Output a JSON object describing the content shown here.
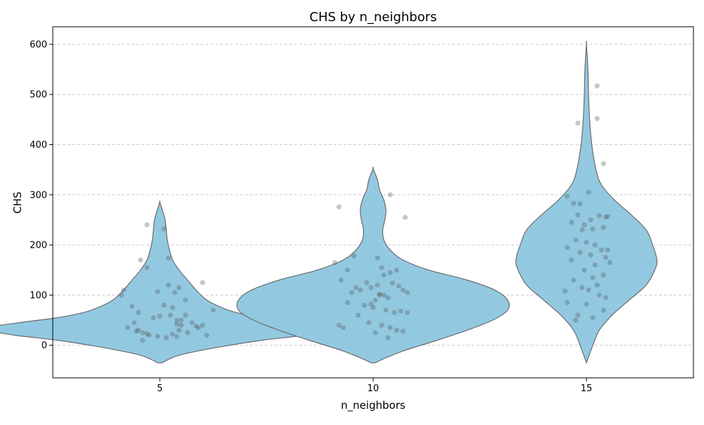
{
  "chart_data": {
    "type": "violin",
    "title": "CHS by n_neighbors",
    "xlabel": "n_neighbors",
    "ylabel": "CHS",
    "categories": [
      "5",
      "10",
      "15"
    ],
    "ylim": [
      -65,
      635
    ],
    "yticks": [
      0,
      100,
      200,
      300,
      400,
      500,
      600
    ],
    "grid": "horizontal-dashed",
    "colors": {
      "violin_fill": "#92c9e1",
      "violin_edge": "#6b6b6b",
      "points": "#505050",
      "grid": "#cccccc"
    },
    "violins": [
      {
        "category": "5",
        "range": [
          -35,
          285
        ],
        "profile": [
          [
            -35,
            0.01
          ],
          [
            -20,
            0.09
          ],
          [
            -5,
            0.26
          ],
          [
            10,
            0.48
          ],
          [
            20,
            0.68
          ],
          [
            30,
            0.8
          ],
          [
            36,
            0.8
          ],
          [
            45,
            0.66
          ],
          [
            55,
            0.48
          ],
          [
            65,
            0.36
          ],
          [
            75,
            0.29
          ],
          [
            90,
            0.22
          ],
          [
            110,
            0.17
          ],
          [
            130,
            0.13
          ],
          [
            150,
            0.09
          ],
          [
            170,
            0.06
          ],
          [
            190,
            0.045
          ],
          [
            210,
            0.035
          ],
          [
            230,
            0.03
          ],
          [
            250,
            0.025
          ],
          [
            265,
            0.015
          ],
          [
            285,
            0.0
          ]
        ],
        "points": [
          [
            30,
            -0.1
          ],
          [
            20,
            -0.05
          ],
          [
            15,
            0.03
          ],
          [
            40,
            0.1
          ],
          [
            25,
            -0.08
          ],
          [
            45,
            0.15
          ],
          [
            35,
            0.18
          ],
          [
            20,
            0.22
          ],
          [
            50,
            0.08
          ],
          [
            55,
            -0.03
          ],
          [
            60,
            0.12
          ],
          [
            75,
            0.06
          ],
          [
            78,
            -0.13
          ],
          [
            80,
            0.02
          ],
          [
            105,
            0.07
          ],
          [
            107,
            -0.01
          ],
          [
            110,
            -0.17
          ],
          [
            120,
            0.04
          ],
          [
            115,
            0.09
          ],
          [
            100,
            -0.18
          ],
          [
            125,
            0.2
          ],
          [
            90,
            0.12
          ],
          [
            70,
            0.25
          ],
          [
            65,
            -0.1
          ],
          [
            60,
            0.05
          ],
          [
            45,
            -0.12
          ],
          [
            40,
            0.2
          ],
          [
            35,
            -0.15
          ],
          [
            30,
            0.09
          ],
          [
            25,
            0.13
          ],
          [
            22,
            0.06
          ],
          [
            18,
            -0.01
          ],
          [
            17,
            0.08
          ],
          [
            23,
            -0.06
          ],
          [
            28,
            -0.11
          ],
          [
            38,
            0.17
          ],
          [
            42,
            0.08
          ],
          [
            10,
            -0.08
          ],
          [
            170,
            -0.09
          ],
          [
            155,
            -0.06
          ],
          [
            240,
            -0.06
          ],
          [
            232,
            0.02
          ],
          [
            174,
            0.04
          ],
          [
            50,
            0.1
          ],
          [
            58,
            0.0
          ]
        ]
      },
      {
        "category": "10",
        "range": [
          -35,
          352
        ],
        "profile": [
          [
            -35,
            0.01
          ],
          [
            -25,
            0.06
          ],
          [
            -10,
            0.15
          ],
          [
            10,
            0.3
          ],
          [
            30,
            0.44
          ],
          [
            50,
            0.56
          ],
          [
            70,
            0.63
          ],
          [
            90,
            0.63
          ],
          [
            110,
            0.57
          ],
          [
            130,
            0.44
          ],
          [
            150,
            0.26
          ],
          [
            170,
            0.14
          ],
          [
            190,
            0.08
          ],
          [
            210,
            0.05
          ],
          [
            230,
            0.045
          ],
          [
            250,
            0.055
          ],
          [
            270,
            0.06
          ],
          [
            290,
            0.05
          ],
          [
            310,
            0.03
          ],
          [
            330,
            0.02
          ],
          [
            352,
            0.0
          ]
        ],
        "points": [
          [
            130,
            -0.15
          ],
          [
            150,
            -0.12
          ],
          [
            165,
            -0.18
          ],
          [
            178,
            -0.09
          ],
          [
            125,
            -0.03
          ],
          [
            120,
            0.02
          ],
          [
            140,
            0.05
          ],
          [
            145,
            0.08
          ],
          [
            155,
            0.04
          ],
          [
            105,
            -0.1
          ],
          [
            110,
            -0.06
          ],
          [
            115,
            -0.01
          ],
          [
            100,
            0.03
          ],
          [
            95,
            0.07
          ],
          [
            85,
            -0.12
          ],
          [
            80,
            -0.04
          ],
          [
            75,
            0.0
          ],
          [
            70,
            0.06
          ],
          [
            65,
            0.1
          ],
          [
            68,
            0.13
          ],
          [
            60,
            -0.07
          ],
          [
            45,
            -0.02
          ],
          [
            40,
            0.04
          ],
          [
            35,
            0.08
          ],
          [
            30,
            0.11
          ],
          [
            28,
            0.14
          ],
          [
            25,
            0.01
          ],
          [
            15,
            0.07
          ],
          [
            110,
            0.14
          ],
          [
            105,
            0.16
          ],
          [
            118,
            0.12
          ],
          [
            65,
            0.16
          ],
          [
            40,
            -0.16
          ],
          [
            35,
            -0.14
          ],
          [
            82,
            -0.01
          ],
          [
            90,
            0.01
          ],
          [
            100,
            0.05
          ],
          [
            124,
            0.09
          ],
          [
            174,
            0.02
          ],
          [
            150,
            0.11
          ],
          [
            300,
            0.08
          ],
          [
            276,
            -0.16
          ],
          [
            255,
            0.15
          ],
          [
            115,
            -0.08
          ],
          [
            102,
            0.03
          ]
        ]
      },
      {
        "category": "15",
        "range": [
          -35,
          600
        ],
        "profile": [
          [
            -35,
            0.0
          ],
          [
            0,
            0.03
          ],
          [
            30,
            0.06
          ],
          [
            60,
            0.12
          ],
          [
            90,
            0.2
          ],
          [
            120,
            0.28
          ],
          [
            150,
            0.32
          ],
          [
            170,
            0.33
          ],
          [
            200,
            0.31
          ],
          [
            230,
            0.28
          ],
          [
            260,
            0.21
          ],
          [
            290,
            0.13
          ],
          [
            320,
            0.07
          ],
          [
            350,
            0.045
          ],
          [
            400,
            0.025
          ],
          [
            450,
            0.015
          ],
          [
            500,
            0.01
          ],
          [
            550,
            0.007
          ],
          [
            600,
            0.0
          ]
        ],
        "points": [
          [
            297,
            -0.09
          ],
          [
            283,
            -0.06
          ],
          [
            282,
            -0.03
          ],
          [
            305,
            0.01
          ],
          [
            258,
            0.06
          ],
          [
            255,
            0.09
          ],
          [
            250,
            0.02
          ],
          [
            260,
            -0.04
          ],
          [
            245,
            -0.07
          ],
          [
            235,
            0.08
          ],
          [
            230,
            -0.02
          ],
          [
            232,
            0.03
          ],
          [
            210,
            -0.05
          ],
          [
            205,
            0.0
          ],
          [
            200,
            0.04
          ],
          [
            195,
            -0.09
          ],
          [
            190,
            0.07
          ],
          [
            185,
            -0.03
          ],
          [
            180,
            0.02
          ],
          [
            175,
            0.09
          ],
          [
            170,
            -0.07
          ],
          [
            160,
            0.04
          ],
          [
            150,
            -0.01
          ],
          [
            140,
            0.08
          ],
          [
            135,
            0.03
          ],
          [
            130,
            -0.06
          ],
          [
            120,
            0.05
          ],
          [
            115,
            -0.02
          ],
          [
            110,
            0.01
          ],
          [
            108,
            -0.1
          ],
          [
            100,
            0.06
          ],
          [
            95,
            0.09
          ],
          [
            85,
            -0.09
          ],
          [
            82,
            0.0
          ],
          [
            70,
            0.08
          ],
          [
            60,
            -0.04
          ],
          [
            55,
            0.03
          ],
          [
            50,
            -0.05
          ],
          [
            443,
            -0.04
          ],
          [
            452,
            0.05
          ],
          [
            517,
            0.05
          ],
          [
            362,
            0.08
          ],
          [
            257,
            0.1
          ],
          [
            240,
            -0.01
          ],
          [
            190,
            0.1
          ],
          [
            165,
            0.11
          ]
        ]
      }
    ]
  }
}
